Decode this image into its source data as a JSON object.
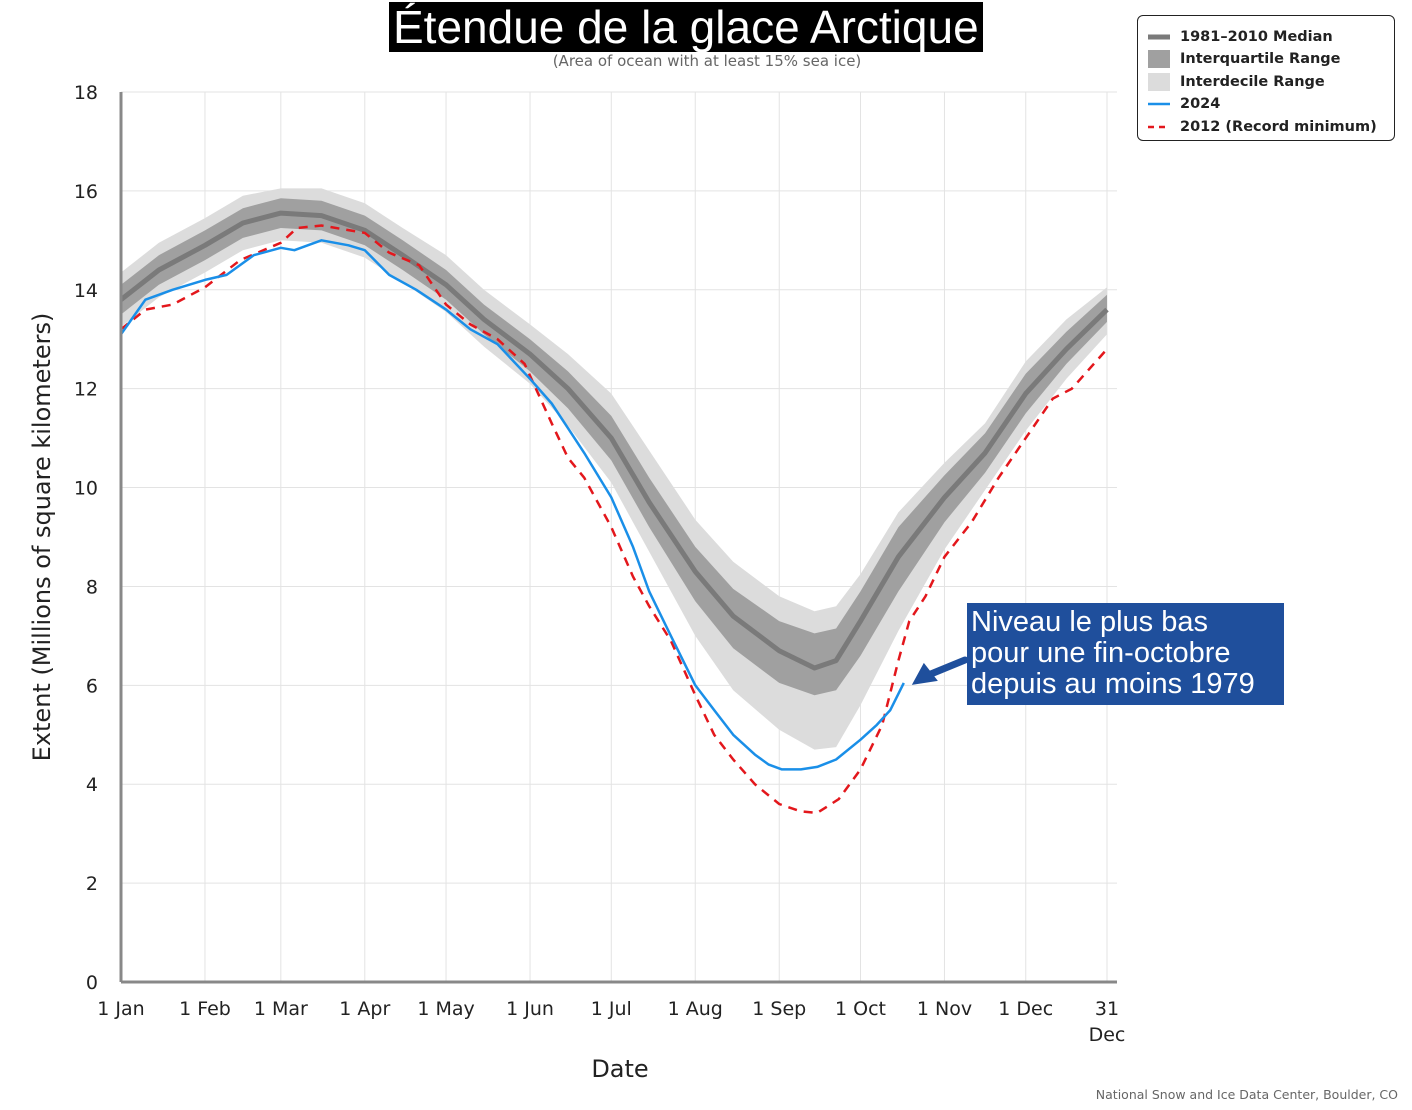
{
  "chart_data": {
    "type": "line",
    "title": "Étendue de la glace Arctique",
    "subtitle": "(Area of ocean with at least 15% sea ice)",
    "xlabel": "Date",
    "ylabel": "Extent (Millions of square kilometers)",
    "ylim": [
      0,
      18
    ],
    "yticks": [
      0,
      2,
      4,
      6,
      8,
      10,
      12,
      14,
      16,
      18
    ],
    "xlim": [
      1,
      365
    ],
    "xticks": [
      {
        "day": 1,
        "label": "1 Jan"
      },
      {
        "day": 32,
        "label": "1 Feb"
      },
      {
        "day": 60,
        "label": "1 Mar"
      },
      {
        "day": 91,
        "label": "1 Apr"
      },
      {
        "day": 121,
        "label": "1 May"
      },
      {
        "day": 152,
        "label": "1 Jun"
      },
      {
        "day": 182,
        "label": "1 Jul"
      },
      {
        "day": 213,
        "label": "1 Aug"
      },
      {
        "day": 244,
        "label": "1 Sep"
      },
      {
        "day": 274,
        "label": "1 Oct"
      },
      {
        "day": 305,
        "label": "1 Nov"
      },
      {
        "day": 335,
        "label": "1 Dec"
      },
      {
        "day": 365,
        "label": "31",
        "label2": "Dec"
      }
    ],
    "grid": true,
    "legend_position": "top-right",
    "x_unit": "day of year",
    "series": [
      {
        "name": "1981–2010 Median",
        "color": "#7a7a7a",
        "points": [
          [
            1,
            13.8
          ],
          [
            15,
            14.4
          ],
          [
            32,
            14.9
          ],
          [
            46,
            15.35
          ],
          [
            60,
            15.55
          ],
          [
            75,
            15.5
          ],
          [
            91,
            15.2
          ],
          [
            105,
            14.7
          ],
          [
            121,
            14.1
          ],
          [
            135,
            13.4
          ],
          [
            152,
            12.7
          ],
          [
            166,
            12.0
          ],
          [
            182,
            11.0
          ],
          [
            196,
            9.7
          ],
          [
            213,
            8.3
          ],
          [
            227,
            7.4
          ],
          [
            244,
            6.7
          ],
          [
            257,
            6.35
          ],
          [
            265,
            6.5
          ],
          [
            274,
            7.3
          ],
          [
            288,
            8.6
          ],
          [
            305,
            9.8
          ],
          [
            320,
            10.7
          ],
          [
            335,
            11.9
          ],
          [
            350,
            12.8
          ],
          [
            365,
            13.6
          ]
        ]
      },
      {
        "name": "Interquartile Range",
        "color": "#a0a0a0",
        "points": [
          [
            1,
            13.5,
            14.1
          ],
          [
            15,
            14.1,
            14.7
          ],
          [
            32,
            14.6,
            15.2
          ],
          [
            46,
            15.05,
            15.65
          ],
          [
            60,
            15.25,
            15.85
          ],
          [
            75,
            15.2,
            15.8
          ],
          [
            91,
            14.9,
            15.5
          ],
          [
            105,
            14.4,
            15.0
          ],
          [
            121,
            13.8,
            14.4
          ],
          [
            135,
            13.1,
            13.7
          ],
          [
            152,
            12.35,
            13.0
          ],
          [
            166,
            11.6,
            12.35
          ],
          [
            182,
            10.55,
            11.45
          ],
          [
            196,
            9.2,
            10.2
          ],
          [
            213,
            7.7,
            8.8
          ],
          [
            227,
            6.75,
            7.95
          ],
          [
            244,
            6.05,
            7.3
          ],
          [
            257,
            5.8,
            7.05
          ],
          [
            265,
            5.9,
            7.15
          ],
          [
            274,
            6.6,
            7.9
          ],
          [
            288,
            7.9,
            9.2
          ],
          [
            305,
            9.3,
            10.25
          ],
          [
            320,
            10.3,
            11.1
          ],
          [
            335,
            11.5,
            12.3
          ],
          [
            350,
            12.5,
            13.15
          ],
          [
            365,
            13.35,
            13.9
          ]
        ]
      },
      {
        "name": "Interdecile Range",
        "color": "#dcdcdc",
        "points": [
          [
            1,
            13.25,
            14.35
          ],
          [
            15,
            13.85,
            14.95
          ],
          [
            32,
            14.35,
            15.45
          ],
          [
            46,
            14.8,
            15.9
          ],
          [
            60,
            15.0,
            16.05
          ],
          [
            75,
            14.95,
            16.05
          ],
          [
            91,
            14.65,
            15.75
          ],
          [
            105,
            14.15,
            15.25
          ],
          [
            121,
            13.55,
            14.7
          ],
          [
            135,
            12.85,
            14.0
          ],
          [
            152,
            12.1,
            13.3
          ],
          [
            166,
            11.25,
            12.7
          ],
          [
            182,
            10.1,
            11.9
          ],
          [
            196,
            8.7,
            10.75
          ],
          [
            213,
            7.0,
            9.35
          ],
          [
            227,
            5.9,
            8.5
          ],
          [
            244,
            5.1,
            7.8
          ],
          [
            257,
            4.7,
            7.5
          ],
          [
            265,
            4.75,
            7.6
          ],
          [
            274,
            5.6,
            8.25
          ],
          [
            288,
            7.1,
            9.5
          ],
          [
            305,
            8.75,
            10.5
          ],
          [
            320,
            9.95,
            11.3
          ],
          [
            335,
            11.15,
            12.55
          ],
          [
            350,
            12.2,
            13.4
          ],
          [
            365,
            13.1,
            14.05
          ]
        ]
      },
      {
        "name": "2024",
        "color": "#1a8fe8",
        "points": [
          [
            1,
            13.1
          ],
          [
            10,
            13.8
          ],
          [
            20,
            14.0
          ],
          [
            32,
            14.2
          ],
          [
            40,
            14.3
          ],
          [
            50,
            14.7
          ],
          [
            60,
            14.85
          ],
          [
            65,
            14.8
          ],
          [
            75,
            15.0
          ],
          [
            85,
            14.9
          ],
          [
            91,
            14.8
          ],
          [
            100,
            14.3
          ],
          [
            110,
            14.0
          ],
          [
            121,
            13.6
          ],
          [
            130,
            13.2
          ],
          [
            140,
            12.9
          ],
          [
            152,
            12.2
          ],
          [
            160,
            11.7
          ],
          [
            166,
            11.2
          ],
          [
            172,
            10.7
          ],
          [
            182,
            9.8
          ],
          [
            190,
            8.8
          ],
          [
            196,
            7.9
          ],
          [
            204,
            7.0
          ],
          [
            213,
            6.0
          ],
          [
            220,
            5.5
          ],
          [
            227,
            5.0
          ],
          [
            235,
            4.6
          ],
          [
            240,
            4.4
          ],
          [
            245,
            4.3
          ],
          [
            252,
            4.3
          ],
          [
            258,
            4.35
          ],
          [
            265,
            4.5
          ],
          [
            274,
            4.9
          ],
          [
            280,
            5.2
          ],
          [
            285,
            5.5
          ],
          [
            290,
            6.05
          ]
        ]
      },
      {
        "name": "2012 (Record minimum)",
        "color": "#e3171c",
        "dashed": true,
        "points": [
          [
            1,
            13.2
          ],
          [
            10,
            13.6
          ],
          [
            20,
            13.7
          ],
          [
            32,
            14.05
          ],
          [
            45,
            14.6
          ],
          [
            60,
            14.95
          ],
          [
            66,
            15.25
          ],
          [
            75,
            15.3
          ],
          [
            91,
            15.15
          ],
          [
            100,
            14.75
          ],
          [
            111,
            14.5
          ],
          [
            121,
            13.7
          ],
          [
            130,
            13.3
          ],
          [
            140,
            13.0
          ],
          [
            150,
            12.5
          ],
          [
            160,
            11.3
          ],
          [
            166,
            10.6
          ],
          [
            172,
            10.2
          ],
          [
            182,
            9.2
          ],
          [
            190,
            8.2
          ],
          [
            196,
            7.6
          ],
          [
            204,
            6.9
          ],
          [
            213,
            5.8
          ],
          [
            220,
            5.0
          ],
          [
            227,
            4.5
          ],
          [
            235,
            4.0
          ],
          [
            244,
            3.6
          ],
          [
            252,
            3.45
          ],
          [
            258,
            3.42
          ],
          [
            266,
            3.7
          ],
          [
            274,
            4.3
          ],
          [
            282,
            5.2
          ],
          [
            288,
            6.5
          ],
          [
            292,
            7.3
          ],
          [
            298,
            7.8
          ],
          [
            305,
            8.6
          ],
          [
            315,
            9.3
          ],
          [
            325,
            10.2
          ],
          [
            335,
            11.0
          ],
          [
            345,
            11.8
          ],
          [
            352,
            12.0
          ],
          [
            365,
            12.8
          ]
        ]
      }
    ]
  },
  "legend": {
    "items": [
      {
        "label": "1981–2010 Median",
        "color": "#7a7a7a",
        "style": "line-thick"
      },
      {
        "label": "Interquartile Range",
        "color": "#a0a0a0",
        "style": "block"
      },
      {
        "label": "Interdecile Range",
        "color": "#dcdcdc",
        "style": "block"
      },
      {
        "label": "2024",
        "color": "#1a8fe8",
        "style": "line"
      },
      {
        "label": "2012 (Record minimum)",
        "color": "#e3171c",
        "style": "dashed"
      }
    ]
  },
  "annotation": {
    "lines": [
      "Niveau le plus bas",
      "pour une fin-octobre",
      "depuis au moins 1979"
    ],
    "color": "#1f4f9c",
    "arrow_day": 290,
    "arrow_value": 6.05
  },
  "source": "National Snow and Ice Data Center, Boulder, CO"
}
